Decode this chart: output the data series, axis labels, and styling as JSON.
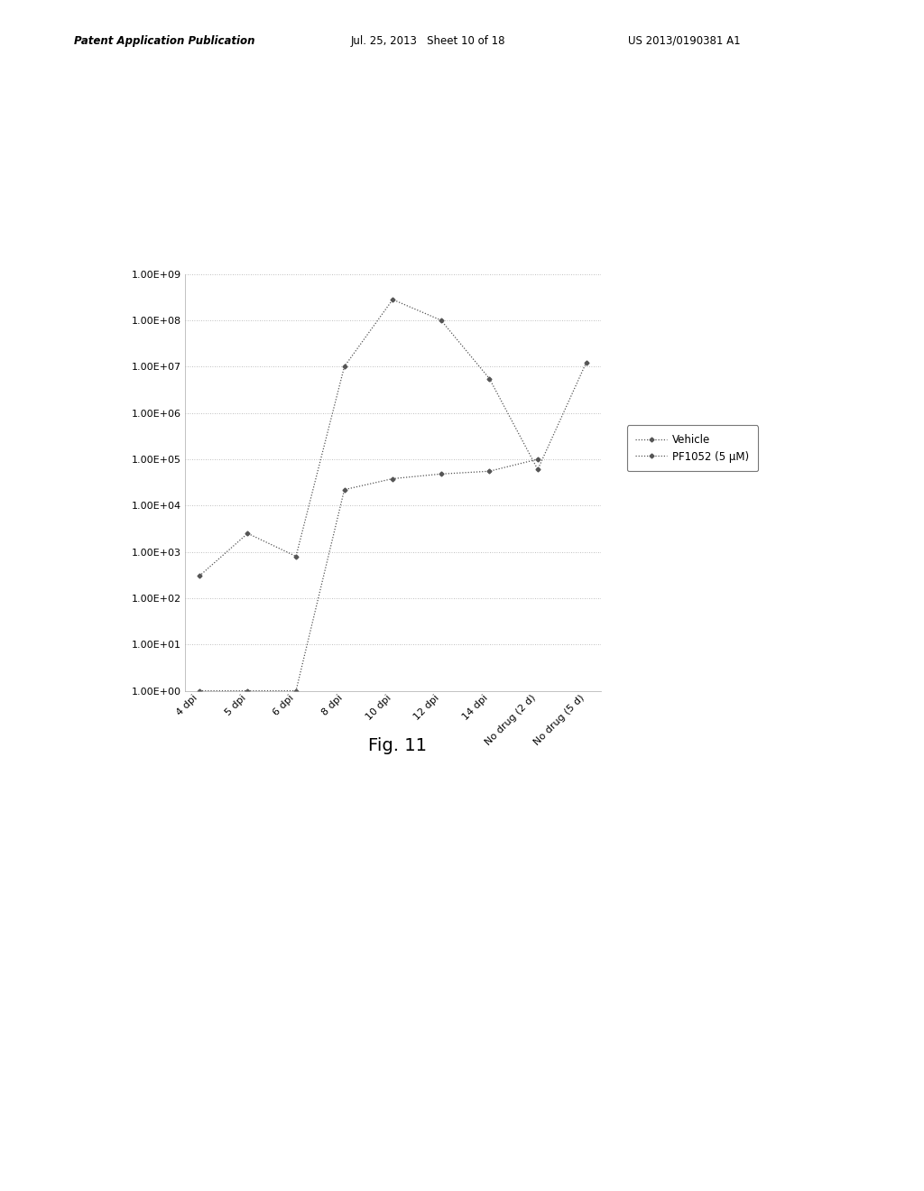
{
  "x_labels": [
    "4 dpi",
    "5 dpi",
    "6 dpi",
    "8 dpi",
    "10 dpi",
    "12 dpi",
    "14 dpi",
    "No drug (2 d)",
    "No drug (5 d)"
  ],
  "vehicle_y": [
    300,
    2500,
    800,
    10000000.0,
    280000000.0,
    100000000.0,
    5500000.0,
    60000.0,
    12000000.0
  ],
  "pf1052_y": [
    1.0,
    1.0,
    1.0,
    22000.0,
    38000.0,
    48000.0,
    55000.0,
    100000.0,
    null
  ],
  "vehicle_color": "#555555",
  "pf1052_color": "#555555",
  "legend_vehicle": "Vehicle",
  "legend_pf1052": "PF1052 (5 μM)",
  "fig_label": "Fig. 11",
  "header_left": "Patent Application Publication",
  "header_mid": "Jul. 25, 2013   Sheet 10 of 18",
  "header_right": "US 2013/0190381 A1",
  "ylim_min": 1.0,
  "ylim_max": 1000000000.0,
  "background_color": "#ffffff"
}
